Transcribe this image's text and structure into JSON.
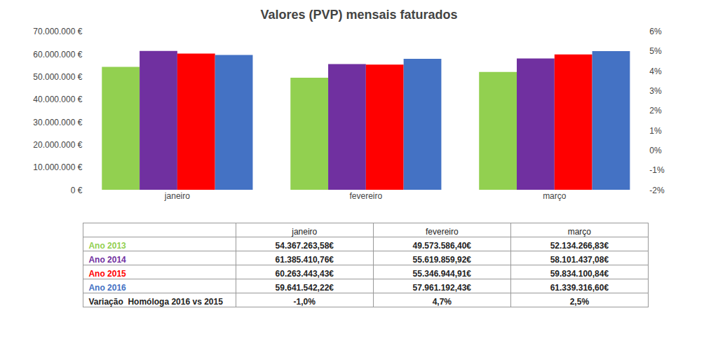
{
  "chart_data": {
    "type": "bar",
    "title": "Valores (PVP) mensais faturados",
    "categories": [
      "janeiro",
      "fevereiro",
      "março"
    ],
    "series": [
      {
        "name": "Ano 2013",
        "color": "#92D050",
        "values": [
          54367263.58,
          49573586.4,
          52134266.83
        ]
      },
      {
        "name": "Ano 2014",
        "color": "#7030A0",
        "values": [
          61385410.76,
          55619859.92,
          58101437.08
        ]
      },
      {
        "name": "Ano 2015",
        "color": "#FF0000",
        "values": [
          60263443.43,
          55346944.91,
          59834100.84
        ]
      },
      {
        "name": "Ano 2016",
        "color": "#4472C4",
        "values": [
          59641542.22,
          57961192.43,
          61339316.6
        ]
      }
    ],
    "ylim": [
      0,
      70000000
    ],
    "yticks": [
      {
        "value": 0,
        "label": "0 €"
      },
      {
        "value": 10000000,
        "label": "10.000.000 €"
      },
      {
        "value": 20000000,
        "label": "20.000.000 €"
      },
      {
        "value": 30000000,
        "label": "30.000.000 €"
      },
      {
        "value": 40000000,
        "label": "40.000.000 €"
      },
      {
        "value": 50000000,
        "label": "50.000.000 €"
      },
      {
        "value": 60000000,
        "label": "60.000.000 €"
      },
      {
        "value": 70000000,
        "label": "70.000.000 €"
      }
    ],
    "y2lim": [
      -0.02,
      0.06
    ],
    "y2ticks": [
      {
        "value": -0.02,
        "label": "-2%"
      },
      {
        "value": -0.01,
        "label": "-1%"
      },
      {
        "value": 0.0,
        "label": "0%"
      },
      {
        "value": 0.01,
        "label": "1%"
      },
      {
        "value": 0.02,
        "label": "2%"
      },
      {
        "value": 0.03,
        "label": "3%"
      },
      {
        "value": 0.04,
        "label": "4%"
      },
      {
        "value": 0.05,
        "label": "5%"
      },
      {
        "value": 0.06,
        "label": "6%"
      }
    ],
    "grid": false,
    "table": {
      "rows": [
        {
          "label": "Ano 2013",
          "cells": [
            "54.367.263,58€",
            "49.573.586,40€",
            "52.134.266,83€"
          ]
        },
        {
          "label": "Ano 2014",
          "cells": [
            "61.385.410,76€",
            "55.619.859,92€",
            "58.101.437,08€"
          ]
        },
        {
          "label": "Ano 2015",
          "cells": [
            "60.263.443,43€",
            "55.346.944,91€",
            "59.834.100,84€"
          ]
        },
        {
          "label": "Ano 2016",
          "cells": [
            "59.641.542,22€",
            "57.961.192,43€",
            "61.339.316,60€"
          ]
        },
        {
          "label": "Variação  Homóloga 2016 vs 2015",
          "cells": [
            "-1,0%",
            "4,7%",
            "2,5%"
          ]
        }
      ]
    }
  }
}
